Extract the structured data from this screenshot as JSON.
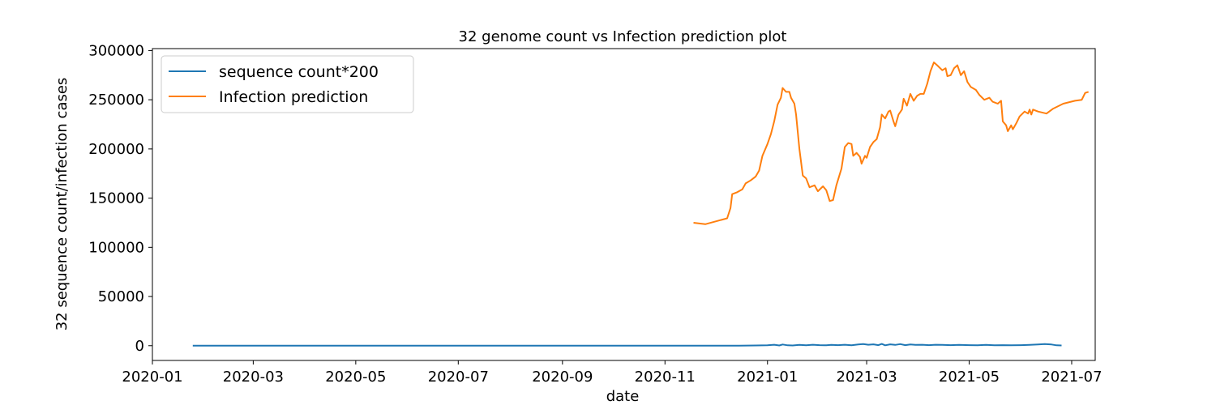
{
  "chart_data": {
    "type": "line",
    "title": "32 genome count vs Infection prediction plot",
    "xlabel": "date",
    "ylabel": "32 sequence count/infection cases",
    "xlim": [
      "2020-01-01",
      "2021-07-15"
    ],
    "ylim": [
      -15000,
      302000
    ],
    "x_ticks": [
      "2020-01",
      "2020-03",
      "2020-05",
      "2020-07",
      "2020-09",
      "2020-11",
      "2021-01",
      "2021-03",
      "2021-05",
      "2021-07"
    ],
    "y_ticks": [
      0,
      50000,
      100000,
      150000,
      200000,
      250000,
      300000
    ],
    "grid": false,
    "legend_position": "top-left",
    "series": [
      {
        "name": "sequence count*200",
        "color": "#1f77b4",
        "points": [
          [
            "2020-01-25",
            0
          ],
          [
            "2020-03-01",
            0
          ],
          [
            "2020-05-01",
            0
          ],
          [
            "2020-07-01",
            0
          ],
          [
            "2020-09-01",
            0
          ],
          [
            "2020-11-01",
            0
          ],
          [
            "2020-12-15",
            0
          ],
          [
            "2020-12-25",
            200
          ],
          [
            "2021-01-01",
            400
          ],
          [
            "2021-01-05",
            1000
          ],
          [
            "2021-01-08",
            200
          ],
          [
            "2021-01-10",
            1200
          ],
          [
            "2021-01-13",
            400
          ],
          [
            "2021-01-16",
            200
          ],
          [
            "2021-01-20",
            800
          ],
          [
            "2021-01-24",
            400
          ],
          [
            "2021-01-28",
            1000
          ],
          [
            "2021-02-01",
            600
          ],
          [
            "2021-02-05",
            400
          ],
          [
            "2021-02-08",
            800
          ],
          [
            "2021-02-12",
            600
          ],
          [
            "2021-02-16",
            1000
          ],
          [
            "2021-02-20",
            400
          ],
          [
            "2021-02-24",
            1200
          ],
          [
            "2021-02-27",
            1600
          ],
          [
            "2021-03-02",
            1000
          ],
          [
            "2021-03-05",
            1400
          ],
          [
            "2021-03-08",
            600
          ],
          [
            "2021-03-10",
            1800
          ],
          [
            "2021-03-12",
            400
          ],
          [
            "2021-03-15",
            1400
          ],
          [
            "2021-03-18",
            800
          ],
          [
            "2021-03-21",
            1600
          ],
          [
            "2021-03-24",
            600
          ],
          [
            "2021-03-27",
            1200
          ],
          [
            "2021-03-30",
            800
          ],
          [
            "2021-04-03",
            1000
          ],
          [
            "2021-04-07",
            600
          ],
          [
            "2021-04-11",
            1000
          ],
          [
            "2021-04-15",
            800
          ],
          [
            "2021-04-20",
            600
          ],
          [
            "2021-04-25",
            800
          ],
          [
            "2021-05-01",
            600
          ],
          [
            "2021-05-06",
            400
          ],
          [
            "2021-05-11",
            800
          ],
          [
            "2021-05-16",
            400
          ],
          [
            "2021-05-21",
            600
          ],
          [
            "2021-05-26",
            400
          ],
          [
            "2021-06-01",
            600
          ],
          [
            "2021-06-06",
            800
          ],
          [
            "2021-06-11",
            1200
          ],
          [
            "2021-06-15",
            1600
          ],
          [
            "2021-06-19",
            1200
          ],
          [
            "2021-06-22",
            400
          ],
          [
            "2021-06-25",
            200
          ]
        ]
      },
      {
        "name": "Infection prediction",
        "color": "#ff7f0e",
        "points": [
          [
            "2020-11-18",
            125000
          ],
          [
            "2020-11-25",
            123500
          ],
          [
            "2020-12-08",
            129500
          ],
          [
            "2020-12-10",
            140000
          ],
          [
            "2020-12-11",
            154000
          ],
          [
            "2020-12-14",
            156000
          ],
          [
            "2020-12-17",
            159000
          ],
          [
            "2020-12-19",
            165000
          ],
          [
            "2020-12-22",
            168000
          ],
          [
            "2020-12-25",
            172000
          ],
          [
            "2020-12-27",
            178000
          ],
          [
            "2020-12-29",
            193000
          ],
          [
            "2021-01-01",
            205000
          ],
          [
            "2021-01-03",
            215000
          ],
          [
            "2021-01-05",
            228000
          ],
          [
            "2021-01-07",
            245000
          ],
          [
            "2021-01-09",
            252000
          ],
          [
            "2021-01-10",
            262000
          ],
          [
            "2021-01-12",
            258000
          ],
          [
            "2021-01-14",
            258000
          ],
          [
            "2021-01-15",
            252000
          ],
          [
            "2021-01-17",
            246000
          ],
          [
            "2021-01-18",
            235000
          ],
          [
            "2021-01-20",
            200000
          ],
          [
            "2021-01-22",
            173000
          ],
          [
            "2021-01-24",
            170000
          ],
          [
            "2021-01-26",
            161000
          ],
          [
            "2021-01-29",
            163000
          ],
          [
            "2021-01-31",
            157000
          ],
          [
            "2021-02-03",
            162000
          ],
          [
            "2021-02-05",
            158000
          ],
          [
            "2021-02-07",
            147000
          ],
          [
            "2021-02-09",
            148000
          ],
          [
            "2021-02-11",
            163000
          ],
          [
            "2021-02-14",
            180000
          ],
          [
            "2021-02-16",
            202000
          ],
          [
            "2021-02-18",
            206000
          ],
          [
            "2021-02-20",
            205000
          ],
          [
            "2021-02-21",
            193000
          ],
          [
            "2021-02-23",
            196000
          ],
          [
            "2021-02-25",
            192000
          ],
          [
            "2021-02-26",
            185000
          ],
          [
            "2021-02-28",
            193000
          ],
          [
            "2021-03-01",
            191000
          ],
          [
            "2021-03-03",
            202000
          ],
          [
            "2021-03-05",
            207000
          ],
          [
            "2021-03-07",
            210000
          ],
          [
            "2021-03-09",
            222000
          ],
          [
            "2021-03-10",
            235000
          ],
          [
            "2021-03-12",
            231000
          ],
          [
            "2021-03-14",
            238000
          ],
          [
            "2021-03-15",
            239000
          ],
          [
            "2021-03-17",
            228000
          ],
          [
            "2021-03-18",
            223000
          ],
          [
            "2021-03-20",
            235000
          ],
          [
            "2021-03-22",
            240000
          ],
          [
            "2021-03-23",
            251000
          ],
          [
            "2021-03-25",
            244000
          ],
          [
            "2021-03-27",
            256000
          ],
          [
            "2021-03-29",
            249000
          ],
          [
            "2021-03-31",
            254000
          ],
          [
            "2021-04-02",
            256000
          ],
          [
            "2021-04-04",
            256000
          ],
          [
            "2021-04-06",
            266000
          ],
          [
            "2021-04-08",
            279000
          ],
          [
            "2021-04-10",
            288000
          ],
          [
            "2021-04-12",
            285000
          ],
          [
            "2021-04-15",
            280000
          ],
          [
            "2021-04-17",
            282000
          ],
          [
            "2021-04-18",
            274000
          ],
          [
            "2021-04-20",
            275000
          ],
          [
            "2021-04-22",
            282000
          ],
          [
            "2021-04-24",
            285000
          ],
          [
            "2021-04-26",
            275000
          ],
          [
            "2021-04-28",
            279000
          ],
          [
            "2021-04-30",
            268000
          ],
          [
            "2021-05-02",
            263000
          ],
          [
            "2021-05-05",
            260000
          ],
          [
            "2021-05-07",
            255000
          ],
          [
            "2021-05-10",
            250000
          ],
          [
            "2021-05-13",
            252000
          ],
          [
            "2021-05-15",
            248000
          ],
          [
            "2021-05-18",
            246000
          ],
          [
            "2021-05-20",
            249000
          ],
          [
            "2021-05-21",
            228000
          ],
          [
            "2021-05-23",
            224000
          ],
          [
            "2021-05-24",
            218000
          ],
          [
            "2021-05-26",
            224000
          ],
          [
            "2021-05-27",
            220000
          ],
          [
            "2021-05-29",
            226000
          ],
          [
            "2021-05-31",
            233000
          ],
          [
            "2021-06-03",
            238000
          ],
          [
            "2021-06-05",
            236000
          ],
          [
            "2021-06-06",
            240000
          ],
          [
            "2021-06-07",
            235000
          ],
          [
            "2021-06-08",
            240000
          ],
          [
            "2021-06-11",
            238000
          ],
          [
            "2021-06-16",
            236000
          ],
          [
            "2021-06-20",
            241000
          ],
          [
            "2021-06-26",
            246000
          ],
          [
            "2021-07-03",
            249000
          ],
          [
            "2021-07-07",
            250000
          ],
          [
            "2021-07-09",
            257000
          ],
          [
            "2021-07-11",
            258000
          ]
        ]
      }
    ]
  }
}
